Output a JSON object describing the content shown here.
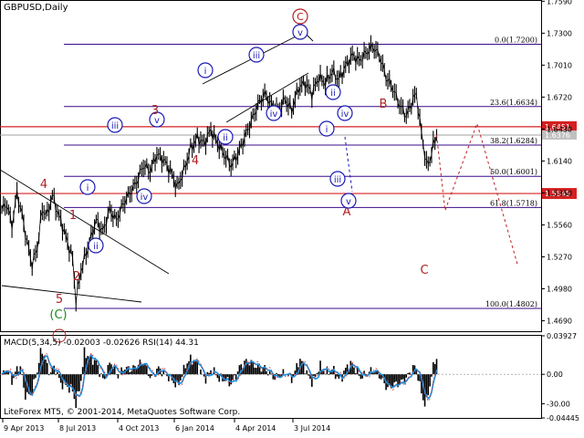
{
  "header": {
    "symbol_timeframe": "GBPUSD,Daily",
    "indicator_label": "MACD(5,34,5) -0.02003 -0.02626 RSI(14) 44.31",
    "copyright": "LiteForex MT5, © 2001-2014, MetaQuotes Software Corp."
  },
  "colors": {
    "price": "#000000",
    "fib_line": "#3a0b8a",
    "red_line": "#d42020",
    "wave_circle": "#1a1ab4",
    "wave_red": "#b02020",
    "wave_green": "#1a8a1a",
    "forecast": "#c02020",
    "current_price": "#a0a0a0",
    "macd_signal": "#1f8fe0",
    "macd_hist": "#000000",
    "macd_rsi": "#c03030"
  },
  "chart_data": [
    {
      "type": "line",
      "title": "GBPUSD,Daily",
      "ylim": [
        1.4595,
        1.7593
      ],
      "price_ticks": [
        "1.7590",
        "1.7300",
        "1.7010",
        "1.6720",
        "1.6430",
        "1.6140",
        "1.5850",
        "1.5560",
        "1.5270",
        "1.4980",
        "1.4690"
      ],
      "x_tick_labels": [
        "9 Apr 2013",
        "8 Jul 2013",
        "4 Oct 2013",
        "6 Jan 2014",
        "4 Apr 2014",
        "3 Jul 2014"
      ],
      "price_path": [
        [
          0,
          1.57
        ],
        [
          3,
          1.575
        ],
        [
          6,
          1.555
        ],
        [
          9,
          1.585
        ],
        [
          12,
          1.565
        ],
        [
          15,
          1.54
        ],
        [
          18,
          1.52
        ],
        [
          21,
          1.535
        ],
        [
          24,
          1.57
        ],
        [
          27,
          1.565
        ],
        [
          30,
          1.583
        ],
        [
          33,
          1.568
        ],
        [
          36,
          1.555
        ],
        [
          39,
          1.54
        ],
        [
          42,
          1.525
        ],
        [
          44,
          1.488
        ],
        [
          47,
          1.515
        ],
        [
          50,
          1.53
        ],
        [
          53,
          1.545
        ],
        [
          56,
          1.56
        ],
        [
          60,
          1.55
        ],
        [
          64,
          1.57
        ],
        [
          68,
          1.56
        ],
        [
          72,
          1.575
        ],
        [
          76,
          1.585
        ],
        [
          80,
          1.595
        ],
        [
          84,
          1.61
        ],
        [
          88,
          1.605
        ],
        [
          92,
          1.62
        ],
        [
          96,
          1.615
        ],
        [
          100,
          1.605
        ],
        [
          104,
          1.59
        ],
        [
          108,
          1.605
        ],
        [
          112,
          1.625
        ],
        [
          116,
          1.635
        ],
        [
          120,
          1.63
        ],
        [
          124,
          1.642
        ],
        [
          128,
          1.63
        ],
        [
          132,
          1.62
        ],
        [
          136,
          1.61
        ],
        [
          140,
          1.62
        ],
        [
          144,
          1.635
        ],
        [
          148,
          1.65
        ],
        [
          152,
          1.665
        ],
        [
          156,
          1.675
        ],
        [
          160,
          1.665
        ],
        [
          164,
          1.66
        ],
        [
          168,
          1.67
        ],
        [
          172,
          1.66
        ],
        [
          176,
          1.68
        ],
        [
          180,
          1.685
        ],
        [
          184,
          1.675
        ],
        [
          188,
          1.69
        ],
        [
          192,
          1.685
        ],
        [
          196,
          1.695
        ],
        [
          200,
          1.688
        ],
        [
          204,
          1.7
        ],
        [
          208,
          1.71
        ],
        [
          212,
          1.705
        ],
        [
          216,
          1.712
        ],
        [
          220,
          1.718
        ],
        [
          224,
          1.71
        ],
        [
          228,
          1.69
        ],
        [
          232,
          1.68
        ],
        [
          236,
          1.665
        ],
        [
          240,
          1.655
        ],
        [
          244,
          1.67
        ],
        [
          246,
          1.675
        ],
        [
          248,
          1.65
        ],
        [
          250,
          1.63
        ],
        [
          252,
          1.61
        ],
        [
          254,
          1.615
        ],
        [
          256,
          1.628
        ],
        [
          258,
          1.6376
        ]
      ],
      "current_price": 1.6376,
      "last_price_label": "1.6376",
      "fib_levels": [
        {
          "label": "0.0(1.7200)",
          "value": 1.72
        },
        {
          "label": "23.6(1.6634)",
          "value": 1.6634
        },
        {
          "label": "38.2(1.6284)",
          "value": 1.6284
        },
        {
          "label": "50.0(1.6001)",
          "value": 1.6001
        },
        {
          "label": "61.8(1.5718)",
          "value": 1.5718
        },
        {
          "label": "100.0(1.4802)",
          "value": 1.4802
        }
      ],
      "red_levels": [
        {
          "label": "1.6451",
          "value": 1.6451
        },
        {
          "label": "1.5845",
          "value": 1.5845
        }
      ],
      "forecast_labels": [
        "A",
        "B",
        "C"
      ],
      "forecast_path": [
        [
          258,
          1.6376
        ],
        [
          263,
          1.569
        ],
        [
          282,
          1.648
        ],
        [
          306,
          1.52
        ]
      ],
      "wave_labels": {
        "circled_blue": [
          "i",
          "ii",
          "iii",
          "iv",
          "v",
          "i",
          "ii",
          "iii",
          "iv",
          "v",
          "i",
          "ii",
          "iii",
          "iv",
          "v"
        ],
        "circled_red": [
          "C"
        ],
        "plain_red": [
          "4",
          "1",
          "2",
          "5",
          "3",
          "4"
        ],
        "circled_green": [
          "(C)"
        ]
      }
    },
    {
      "type": "bar",
      "title": "MACD(5,34,5) -0.02003 -0.02626 RSI(14) 44.31",
      "ylim": [
        -0.04445,
        0.03927
      ],
      "ticks": [
        "0.03927",
        "0.00",
        "-30.00",
        "-0.04445"
      ],
      "macd_value": -0.02003,
      "signal_value": -0.02626,
      "rsi_value": 44.31
    }
  ]
}
